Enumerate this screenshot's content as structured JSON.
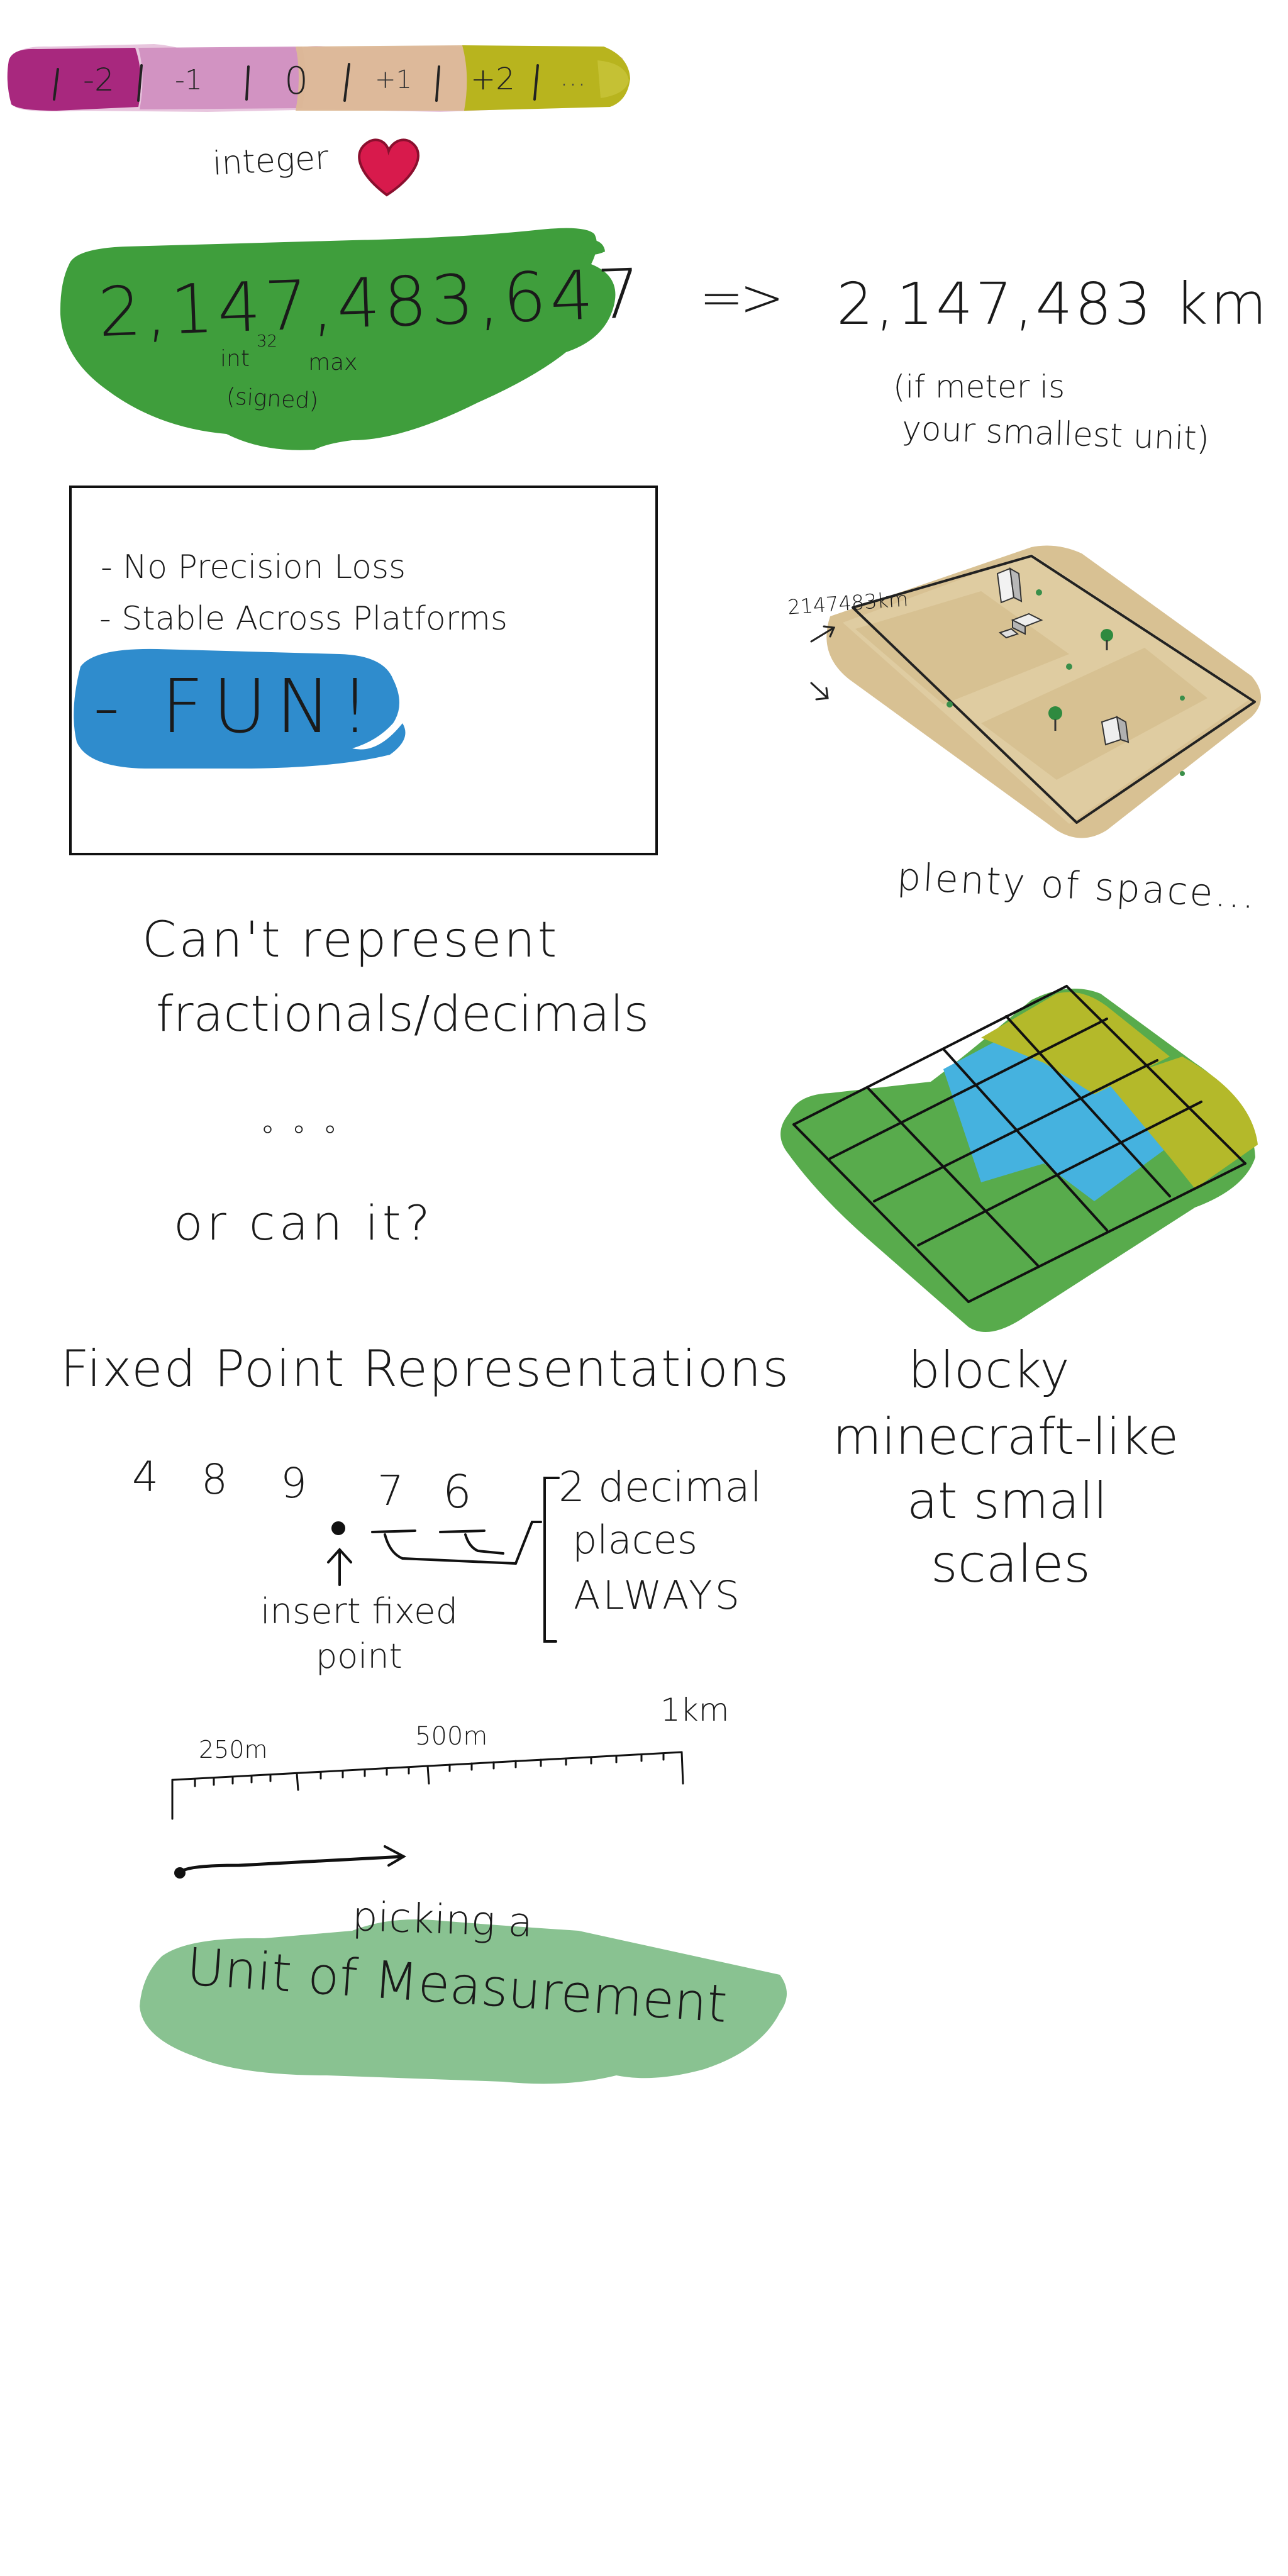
{
  "number_line": {
    "labels": [
      "-2",
      "-1",
      "0",
      "+1",
      "+2",
      "..."
    ]
  },
  "integer_heart": {
    "label": "integer"
  },
  "int_max": {
    "value": "2,147,483,647",
    "type": "int",
    "superscript": "32",
    "suffix": "max",
    "signed": "(signed)"
  },
  "km_result": {
    "arrow": "=>",
    "value": "2,147,483 km",
    "note_line1": "(if meter is",
    "note_line2": "your smallest unit)"
  },
  "benefits_box": {
    "item1": "- No Precision Loss",
    "item2": "- Stable Across Platforms",
    "item3": "- FUN!"
  },
  "map_diagram": {
    "dimension_label": "2147483km",
    "caption": "plenty of space..."
  },
  "fraction_question": {
    "line1": "Can't represent",
    "line2": "fractionals/decimals",
    "dots": "° ° °",
    "line3": "or can it?"
  },
  "blocky_caption": {
    "line1": "blocky",
    "line2": "minecraft-like",
    "line3": "at small",
    "line4": "scales"
  },
  "fixed_point": {
    "title": "Fixed Point Representations",
    "digits": [
      "4",
      "8",
      "9",
      "7",
      "6"
    ],
    "bracket_line1": "2 decimal",
    "bracket_line2": "places",
    "bracket_line3": "ALWAYS",
    "pointer_line1": "insert fixed",
    "pointer_line2": "point"
  },
  "scale": {
    "tick_labels": [
      "250m",
      "500m",
      "1km"
    ]
  },
  "unit_pick": {
    "line1": "picking a",
    "line2": "Unit of Measurement"
  },
  "colors": {
    "magenta": "#a8287e",
    "pink": "#d9a0c8",
    "tan": "#dcb896",
    "olive": "#b8b41e",
    "green": "#3f9e3c",
    "blue": "#2f8ccd",
    "sand": "#d8c193",
    "grid_green": "#58ab4c",
    "grid_blue": "#45b2df",
    "grid_olive": "#b4b92a",
    "mint": "#89c291",
    "heart": "#d81a4c"
  }
}
